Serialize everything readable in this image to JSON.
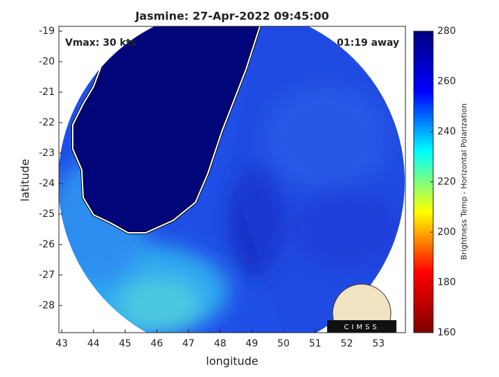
{
  "chart_data": {
    "type": "image",
    "title": "Jasmine: 27-Apr-2022 09:45:00",
    "xlabel": "longitude",
    "ylabel": "latitude",
    "xlim": [
      42.91,
      53.85
    ],
    "xticks": [
      43,
      44,
      45,
      46,
      47,
      48,
      49,
      50,
      51,
      52,
      53
    ],
    "ylim": [
      -28.89,
      -18.84
    ],
    "yticks": [
      -28,
      -27,
      -26,
      -25,
      -24,
      -23,
      -22,
      -21,
      -20,
      -19
    ],
    "annotations": [
      "Vmax: 30 kts",
      "01:19 away"
    ],
    "logo_text": "CIMSS",
    "colorbar": {
      "label": "Brightness Temp - Horizontal Polarization",
      "lim": [
        160,
        280
      ],
      "ticks": [
        160,
        180,
        200,
        220,
        240,
        260,
        280
      ],
      "colors": [
        "#800000",
        "#ff0000",
        "#ffff00",
        "#00ffff",
        "#0000ff",
        "#00007f"
      ]
    }
  }
}
